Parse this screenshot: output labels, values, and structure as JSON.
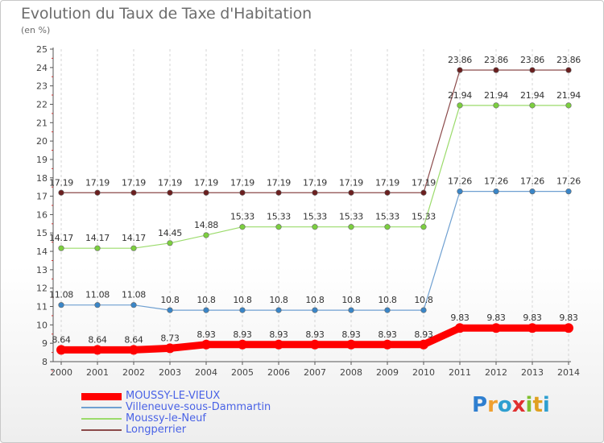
{
  "title": "Evolution du Taux de Taxe d'Habitation",
  "subtitle": "(en %)",
  "logo": "Proxiti",
  "chart_data": {
    "type": "line",
    "x": [
      "2000",
      "2001",
      "2002",
      "2003",
      "2004",
      "2005",
      "2006",
      "2007",
      "2008",
      "2009",
      "2010",
      "2011",
      "2012",
      "2013",
      "2014"
    ],
    "ylim": [
      8,
      25
    ],
    "yticks": [
      8,
      9,
      10,
      11,
      12,
      13,
      14,
      15,
      16,
      17,
      18,
      19,
      20,
      21,
      22,
      23,
      24,
      25
    ],
    "grid": "vertical",
    "legend_position": "bottom-left",
    "series": [
      {
        "name": "MOUSSY-LE-VIEUX",
        "color": "#ff0000",
        "width": 9,
        "values": [
          8.64,
          8.64,
          8.64,
          8.73,
          8.93,
          8.93,
          8.93,
          8.93,
          8.93,
          8.93,
          8.93,
          9.83,
          9.83,
          9.83,
          9.83
        ]
      },
      {
        "name": "Villeneuve-sous-Dammartin",
        "color": "#6fa0d1",
        "width": 1.2,
        "values": [
          11.08,
          11.08,
          11.08,
          10.8,
          10.8,
          10.8,
          10.8,
          10.8,
          10.8,
          10.8,
          10.8,
          17.26,
          17.26,
          17.26,
          17.26
        ]
      },
      {
        "name": "Moussy-le-Neuf",
        "color": "#9bdb6b",
        "width": 1.2,
        "values": [
          14.17,
          14.17,
          14.17,
          14.45,
          14.88,
          15.33,
          15.33,
          15.33,
          15.33,
          15.33,
          15.33,
          21.94,
          21.94,
          21.94,
          21.94
        ]
      },
      {
        "name": "Longperrier",
        "color": "#8b4a4a",
        "width": 1.2,
        "values": [
          17.19,
          17.19,
          17.19,
          17.19,
          17.19,
          17.19,
          17.19,
          17.19,
          17.19,
          17.19,
          17.19,
          23.86,
          23.86,
          23.86,
          23.86
        ]
      }
    ],
    "marker_colors": {
      "MOUSSY-LE-VIEUX": "#ff0000",
      "Villeneuve-sous-Dammartin": "#3a86c8",
      "Moussy-le-Neuf": "#7ccf3f",
      "Longperrier": "#6b1f1f"
    },
    "data_labels": {
      "MOUSSY-LE-VIEUX": [
        "8.64",
        "8.64",
        "8.64",
        "8.73",
        "8.93",
        "8.93",
        "8.93",
        "8.93",
        "8.93",
        "8.93",
        "8.93",
        "9.83",
        "9.83",
        "9.83",
        "9.83"
      ],
      "Villeneuve-sous-Dammartin": [
        "11.08",
        "11.08",
        "11.08",
        "10.8",
        "10.8",
        "10.8",
        "10.8",
        "10.8",
        "10.8",
        "10.8",
        "10.8",
        "17.26",
        "17.26",
        "17.26",
        "17.26"
      ],
      "Moussy-le-Neuf": [
        "14.17",
        "14.17",
        "14.17",
        "14.45",
        "14.88",
        "15.33",
        "15.33",
        "15.33",
        "15.33",
        "15.33",
        "15.33",
        "21.94",
        "21.94",
        "21.94",
        "21.94"
      ],
      "Longperrier": [
        "17.19",
        "17.19",
        "17.19",
        "17.19",
        "17.19",
        "17.19",
        "17.19",
        "17.19",
        "17.19",
        "17.19",
        "17.19",
        "23.86",
        "23.86",
        "23.86",
        "23.86"
      ]
    }
  }
}
